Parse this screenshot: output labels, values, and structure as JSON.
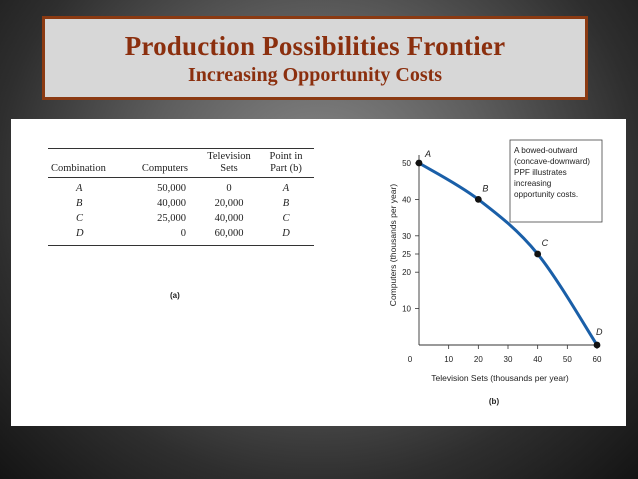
{
  "slide": {
    "title": "Production Possibilities Frontier",
    "subtitle": "Increasing Opportunity Costs"
  },
  "table": {
    "headers": [
      "Combination",
      "Computers",
      "Television Sets",
      "Point in Part (b)"
    ],
    "rows": [
      [
        "A",
        "50,000",
        "0",
        "A"
      ],
      [
        "B",
        "40,000",
        "20,000",
        "B"
      ],
      [
        "C",
        "25,000",
        "40,000",
        "C"
      ],
      [
        "D",
        "0",
        "60,000",
        "D"
      ]
    ],
    "caption": "(a)"
  },
  "chart_data": {
    "type": "line",
    "caption": "(b)",
    "xlabel": "Television Sets (thousands per year)",
    "ylabel": "Computers (thousands per year)",
    "xlim": [
      0,
      60
    ],
    "ylim": [
      0,
      50
    ],
    "xticks": [
      0,
      10,
      20,
      30,
      40,
      50,
      60
    ],
    "yticks": [
      10,
      20,
      25,
      30,
      40,
      50
    ],
    "points": [
      {
        "label": "A",
        "x": 0,
        "y": 50
      },
      {
        "label": "B",
        "x": 20,
        "y": 40
      },
      {
        "label": "C",
        "x": 40,
        "y": 25
      },
      {
        "label": "D",
        "x": 60,
        "y": 0
      }
    ],
    "annotation": "A bowed-outward (concave-downward) PPF illustrates increasing opportunity costs.",
    "curve_color": "#1a5fa8",
    "point_color": "#111111",
    "grid": false
  }
}
